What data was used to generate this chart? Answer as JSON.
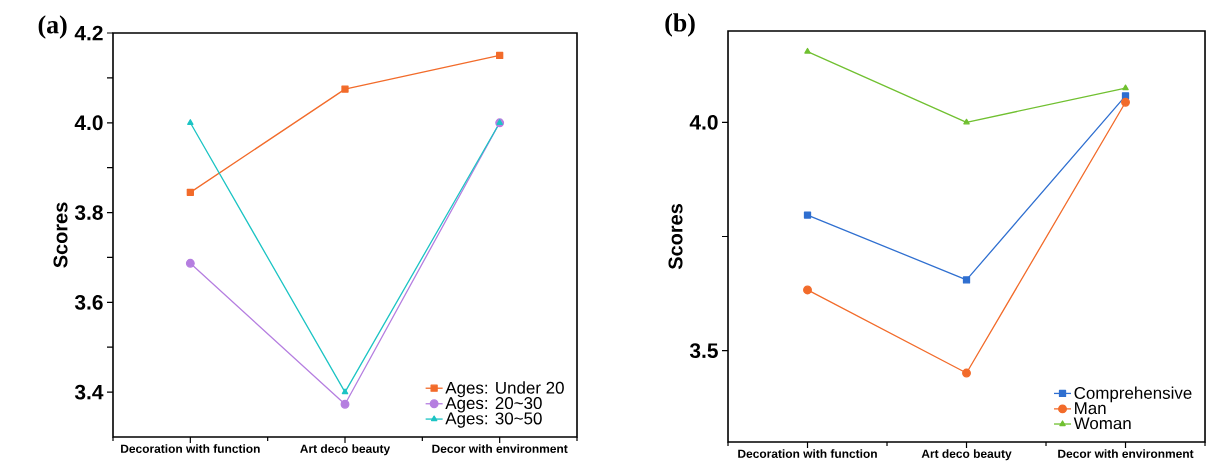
{
  "chart_data": [
    {
      "type": "line",
      "title": "(a)",
      "ylabel": "Scores",
      "categories": [
        "Decoration with function",
        "Art deco beauty",
        "Decor with environment"
      ],
      "ylim": [
        3.3,
        4.2
      ],
      "yticks": [
        3.4,
        {
          "value": 3.5,
          "label": null
        },
        3.6,
        {
          "value": 3.7,
          "label": null
        },
        3.8,
        {
          "value": 3.9,
          "label": null
        },
        {
          "value": 4.0,
          "label": "4.0"
        },
        {
          "value": 4.1,
          "label": null
        },
        4.2
      ],
      "legend": "bottom right",
      "series": [
        {
          "name": "Ages: Under 20",
          "color": "#f26b2a",
          "marker": "square",
          "values": [
            3.845,
            4.075,
            4.15
          ]
        },
        {
          "name": "Ages: 20~30",
          "color": "#b57ee0",
          "marker": "circle",
          "values": [
            3.687,
            3.373,
            4.0
          ]
        },
        {
          "name": "Ages: 30~50",
          "color": "#1cc4c4",
          "marker": "triangle",
          "values": [
            4.0,
            3.4,
            4.0
          ]
        }
      ]
    },
    {
      "type": "line",
      "title": "(b)",
      "ylabel": "Scores",
      "categories": [
        "Decoration with function",
        "Art deco beauty",
        "Decor with environment"
      ],
      "ylim": [
        3.3,
        4.2
      ],
      "yticks": [
        3.5,
        {
          "value": 3.75,
          "label": null
        },
        {
          "value": 4.0,
          "label": "4.0"
        }
      ],
      "legend": "bottom right",
      "series": [
        {
          "name": "Comprehensive",
          "color": "#2f6fd0",
          "marker": "square",
          "values": [
            3.797,
            3.655,
            4.058
          ]
        },
        {
          "name": "Man",
          "color": "#f26b2a",
          "marker": "circle",
          "values": [
            3.633,
            3.451,
            4.044
          ]
        },
        {
          "name": "Woman",
          "color": "#70c030",
          "marker": "triangle",
          "values": [
            4.155,
            4.0,
            4.075
          ]
        }
      ]
    }
  ]
}
